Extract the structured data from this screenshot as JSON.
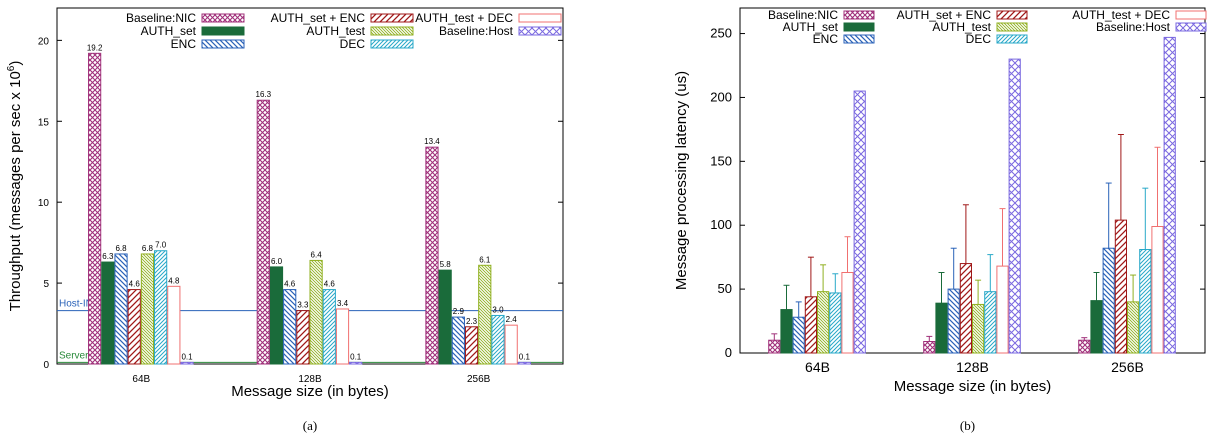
{
  "chart_data": [
    {
      "type": "bar",
      "caption": "(a)",
      "xlabel": "Message size (in bytes)",
      "ylabel": "Throughput (messages per sec x 10^6)",
      "ylabel_main": "Throughput (messages per sec x 10",
      "ylabel_exp": "6",
      "ylabel_close": ")",
      "ylim": [
        0,
        22
      ],
      "yticks": [
        0,
        5,
        10,
        15,
        20
      ],
      "categories": [
        "64B",
        "128B",
        "256B"
      ],
      "series": [
        {
          "name": "Baseline:NIC",
          "color": "#a0307a",
          "values": [
            19.2,
            16.3,
            13.4
          ]
        },
        {
          "name": "AUTH_set",
          "color": "#1a6b3a",
          "values": [
            6.3,
            6.0,
            5.8
          ]
        },
        {
          "name": "ENC",
          "color": "#2a62b8",
          "values": [
            6.8,
            4.6,
            2.9
          ]
        },
        {
          "name": "AUTH_set + ENC",
          "color": "#a01818",
          "values": [
            4.6,
            3.3,
            2.3
          ]
        },
        {
          "name": "AUTH_test",
          "color": "#90b020",
          "values": [
            6.8,
            6.4,
            6.1
          ]
        },
        {
          "name": "DEC",
          "color": "#28a8c8",
          "values": [
            7.0,
            4.6,
            3.0
          ]
        },
        {
          "name": "AUTH_test + DEC",
          "color": "#f07070",
          "values": [
            4.8,
            3.4,
            2.4
          ]
        },
        {
          "name": "Baseline:Host",
          "color": "#7a68e0",
          "values": [
            0.1,
            0.1,
            0.1
          ]
        }
      ],
      "data_labels": [
        [
          "19.2",
          "6.3",
          "6.8",
          "4.6",
          "6.8",
          "7.0",
          "4.8",
          "0.1"
        ],
        [
          "16.3",
          "6.0",
          "4.6",
          "3.3",
          "6.4",
          "4.6",
          "3.4",
          "0.1"
        ],
        [
          "13.4",
          "5.8",
          "2.9",
          "2.3",
          "6.1",
          "3.0",
          "2.4",
          "0.1"
        ]
      ],
      "reference_lines": [
        {
          "label": "Host-INT",
          "value": 3.3,
          "color": "#2a62b8"
        },
        {
          "label": "Serverless",
          "value": 0.1,
          "color": "#2a8a3a"
        }
      ],
      "legend_placement": "top"
    },
    {
      "type": "bar",
      "caption": "(b)",
      "xlabel": "Message size (in bytes)",
      "ylabel": "Message processing latency (us)",
      "ylim": [
        0,
        270
      ],
      "yticks": [
        0,
        50,
        100,
        150,
        200,
        250
      ],
      "categories": [
        "64B",
        "128B",
        "256B"
      ],
      "series": [
        {
          "name": "Baseline:NIC",
          "color": "#a0307a",
          "values": [
            10,
            9,
            10
          ],
          "err_high": [
            15,
            13,
            12
          ]
        },
        {
          "name": "AUTH_set",
          "color": "#1a6b3a",
          "values": [
            34,
            39,
            41
          ],
          "err_high": [
            53,
            63,
            63
          ]
        },
        {
          "name": "ENC",
          "color": "#2a62b8",
          "values": [
            28,
            50,
            82
          ],
          "err_high": [
            40,
            82,
            133
          ]
        },
        {
          "name": "AUTH_set + ENC",
          "color": "#a01818",
          "values": [
            44,
            70,
            104
          ],
          "err_high": [
            75,
            116,
            171
          ]
        },
        {
          "name": "AUTH_test",
          "color": "#90b020",
          "values": [
            48,
            38,
            40
          ],
          "err_high": [
            69,
            57,
            61
          ]
        },
        {
          "name": "DEC",
          "color": "#28a8c8",
          "values": [
            47,
            48,
            81
          ],
          "err_high": [
            62,
            77,
            129
          ]
        },
        {
          "name": "AUTH_test + DEC",
          "color": "#f07070",
          "values": [
            63,
            68,
            99
          ],
          "err_high": [
            91,
            113,
            161
          ]
        },
        {
          "name": "Baseline:Host",
          "color": "#7a68e0",
          "values": [
            205,
            230,
            247
          ],
          "err_high": [
            205,
            230,
            247
          ]
        }
      ],
      "legend_placement": "top"
    }
  ]
}
